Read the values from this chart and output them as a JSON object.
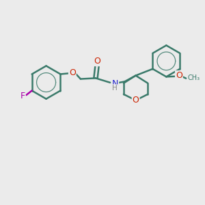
{
  "background_color": "#ebebeb",
  "bond_color": "#3a7a6a",
  "bond_width": 1.8,
  "atom_colors": {
    "O": "#cc2200",
    "N": "#2222cc",
    "F": "#aa00aa",
    "C": "#3a7a6a",
    "H": "#888888"
  },
  "font_size": 8.0,
  "figure_size": [
    3.0,
    3.0
  ],
  "dpi": 100
}
